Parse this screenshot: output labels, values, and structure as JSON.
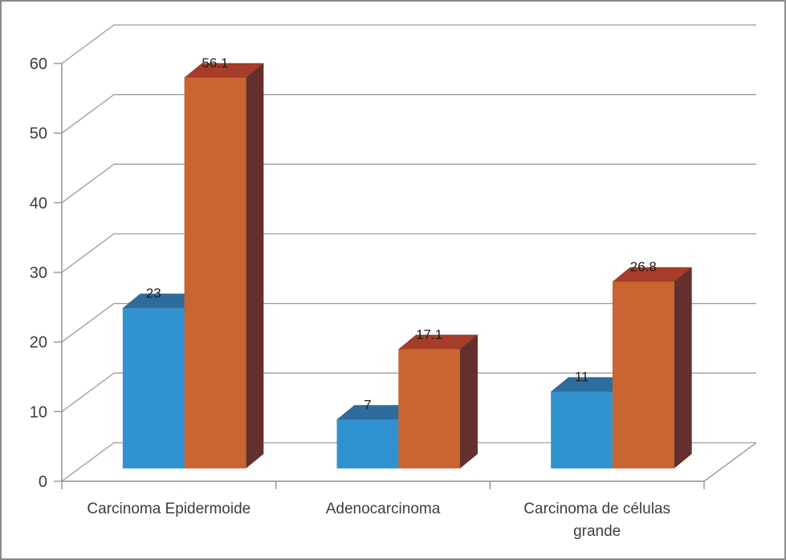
{
  "chart_data": {
    "type": "bar",
    "subtype": "3d_clustered_column",
    "title": "",
    "legend_position": "none",
    "grid": true,
    "data_labels_visible": true,
    "categories": [
      "Carcinoma Epidermoide",
      "Adenocarcinoma",
      "Carcinoma de células grande"
    ],
    "series": [
      {
        "values": [
          23,
          7,
          11
        ],
        "labels": [
          "23",
          "7",
          "11"
        ],
        "front_color": "#3093cf",
        "top_color": "#2e6c9e",
        "side_color": "#23587f"
      },
      {
        "values": [
          56.1,
          17.1,
          26.8
        ],
        "labels": [
          "56.1",
          "17.1",
          "26.8"
        ],
        "front_color": "#c96530",
        "top_color": "#a63c29",
        "side_color": "#63302e"
      }
    ],
    "y_axis": {
      "min": 0,
      "max": 60,
      "step": 10,
      "tick_labels": [
        "0",
        "10",
        "20",
        "30",
        "40",
        "50",
        "60"
      ]
    },
    "x_axis": {
      "tick_labels_visible": true
    }
  },
  "colors": {
    "background": "#ffffff",
    "border": "#8a8a8a",
    "axis_line": "#8f8f8f",
    "grid_line": "#9c9c9c",
    "axis_text": "#3d3d3d",
    "data_label_text": "#1f1f1f"
  }
}
